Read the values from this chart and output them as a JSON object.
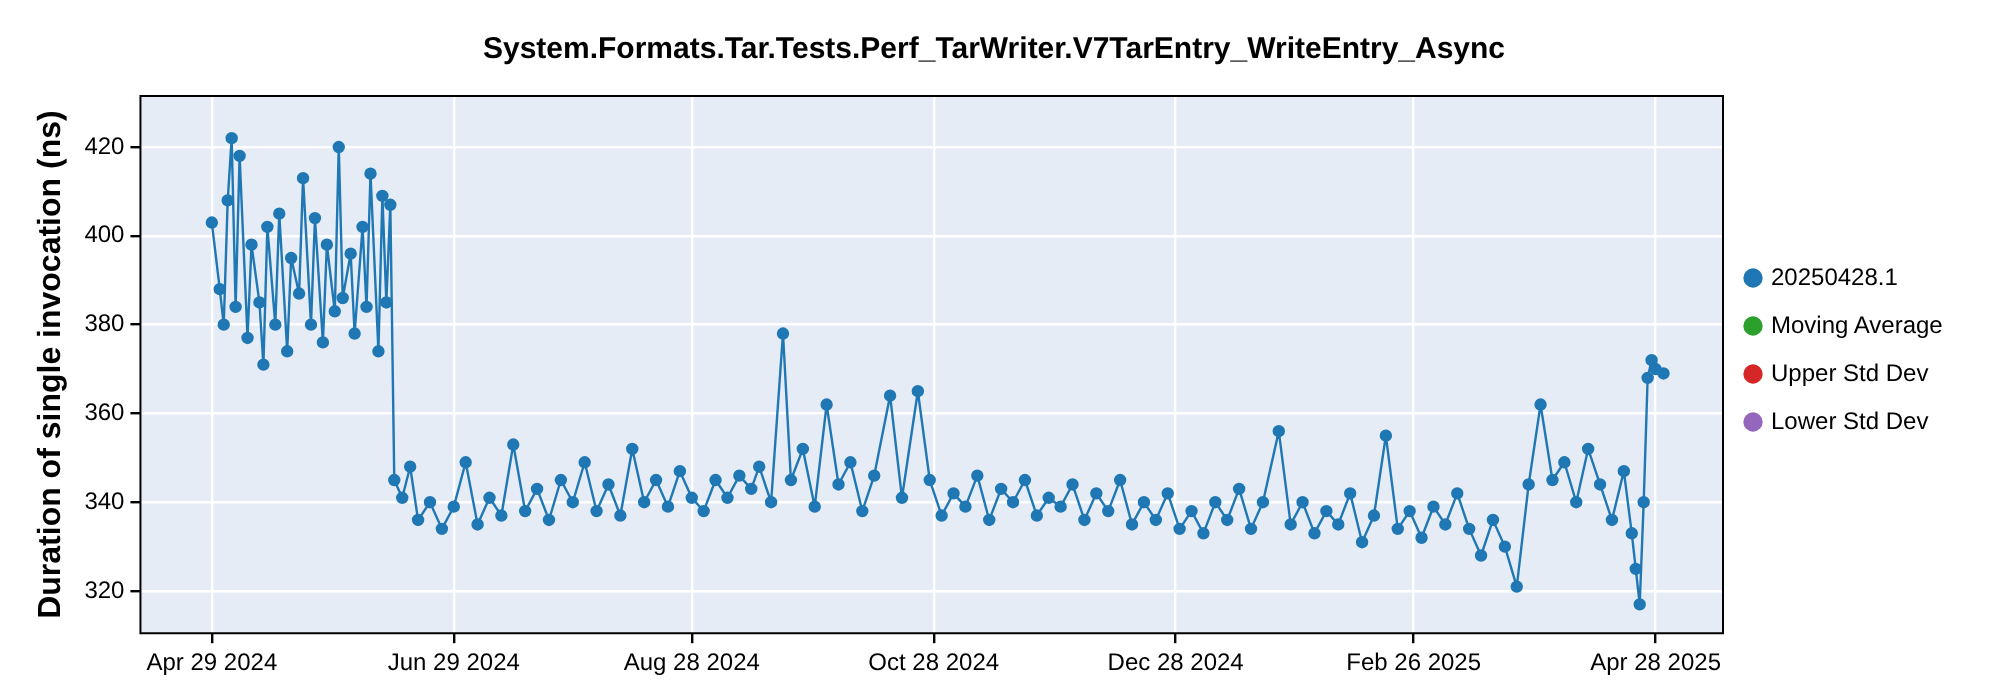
{
  "chart_data": {
    "type": "line",
    "title": "System.Formats.Tar.Tests.Perf_TarWriter.V7TarEntry_WriteEntry_Async",
    "ylabel": "Duration of single invocation (ns)",
    "x": [
      "2024-04-29",
      "2024-05-01",
      "2024-05-02",
      "2024-05-03",
      "2024-05-04",
      "2024-05-05",
      "2024-05-06",
      "2024-05-08",
      "2024-05-09",
      "2024-05-11",
      "2024-05-12",
      "2024-05-13",
      "2024-05-15",
      "2024-05-16",
      "2024-05-18",
      "2024-05-19",
      "2024-05-21",
      "2024-05-22",
      "2024-05-24",
      "2024-05-25",
      "2024-05-27",
      "2024-05-28",
      "2024-05-30",
      "2024-05-31",
      "2024-06-01",
      "2024-06-03",
      "2024-06-04",
      "2024-06-06",
      "2024-06-07",
      "2024-06-08",
      "2024-06-10",
      "2024-06-11",
      "2024-06-12",
      "2024-06-13",
      "2024-06-14",
      "2024-06-16",
      "2024-06-18",
      "2024-06-20",
      "2024-06-23",
      "2024-06-26",
      "2024-06-29",
      "2024-07-02",
      "2024-07-05",
      "2024-07-08",
      "2024-07-11",
      "2024-07-14",
      "2024-07-17",
      "2024-07-20",
      "2024-07-23",
      "2024-07-26",
      "2024-07-29",
      "2024-08-01",
      "2024-08-04",
      "2024-08-07",
      "2024-08-10",
      "2024-08-13",
      "2024-08-16",
      "2024-08-19",
      "2024-08-22",
      "2024-08-25",
      "2024-08-28",
      "2024-08-31",
      "2024-09-03",
      "2024-09-06",
      "2024-09-09",
      "2024-09-12",
      "2024-09-14",
      "2024-09-17",
      "2024-09-20",
      "2024-09-22",
      "2024-09-25",
      "2024-09-28",
      "2024-10-01",
      "2024-10-04",
      "2024-10-07",
      "2024-10-10",
      "2024-10-13",
      "2024-10-17",
      "2024-10-20",
      "2024-10-24",
      "2024-10-27",
      "2024-10-30",
      "2024-11-02",
      "2024-11-05",
      "2024-11-08",
      "2024-11-11",
      "2024-11-14",
      "2024-11-17",
      "2024-11-20",
      "2024-11-23",
      "2024-11-26",
      "2024-11-29",
      "2024-12-02",
      "2024-12-05",
      "2024-12-08",
      "2024-12-11",
      "2024-12-14",
      "2024-12-17",
      "2024-12-20",
      "2024-12-23",
      "2024-12-26",
      "2024-12-29",
      "2025-01-01",
      "2025-01-04",
      "2025-01-07",
      "2025-01-10",
      "2025-01-13",
      "2025-01-16",
      "2025-01-19",
      "2025-01-23",
      "2025-01-26",
      "2025-01-29",
      "2025-02-01",
      "2025-02-04",
      "2025-02-07",
      "2025-02-10",
      "2025-02-13",
      "2025-02-16",
      "2025-02-19",
      "2025-02-22",
      "2025-02-25",
      "2025-02-28",
      "2025-03-03",
      "2025-03-06",
      "2025-03-09",
      "2025-03-12",
      "2025-03-15",
      "2025-03-18",
      "2025-03-21",
      "2025-03-24",
      "2025-03-27",
      "2025-03-30",
      "2025-04-02",
      "2025-04-05",
      "2025-04-08",
      "2025-04-11",
      "2025-04-14",
      "2025-04-17",
      "2025-04-20",
      "2025-04-22",
      "2025-04-23",
      "2025-04-24",
      "2025-04-25",
      "2025-04-26",
      "2025-04-27",
      "2025-04-28",
      "2025-04-30"
    ],
    "series": [
      {
        "name": "20250428.1",
        "color": "#1f77b4",
        "values": [
          403,
          388,
          380,
          408,
          422,
          384,
          418,
          377,
          398,
          385,
          371,
          402,
          380,
          405,
          374,
          395,
          387,
          413,
          380,
          404,
          376,
          398,
          383,
          420,
          386,
          396,
          378,
          402,
          384,
          414,
          374,
          409,
          385,
          407,
          345,
          341,
          348,
          336,
          340,
          334,
          339,
          349,
          335,
          341,
          337,
          353,
          338,
          343,
          336,
          345,
          340,
          349,
          338,
          344,
          337,
          352,
          340,
          345,
          339,
          347,
          341,
          338,
          345,
          341,
          346,
          343,
          348,
          340,
          378,
          345,
          352,
          339,
          362,
          344,
          349,
          338,
          346,
          364,
          341,
          365,
          345,
          337,
          342,
          339,
          346,
          336,
          343,
          340,
          345,
          337,
          341,
          339,
          344,
          336,
          342,
          338,
          345,
          335,
          340,
          336,
          342,
          334,
          338,
          333,
          340,
          336,
          343,
          334,
          340,
          356,
          335,
          340,
          333,
          338,
          335,
          342,
          331,
          337,
          355,
          334,
          338,
          332,
          339,
          335,
          342,
          334,
          328,
          336,
          330,
          321,
          344,
          362,
          345,
          349,
          340,
          352,
          344,
          336,
          347,
          333,
          325,
          317,
          340,
          368,
          372,
          370,
          369
        ]
      },
      {
        "name": "Moving Average",
        "color": "#2ca02c",
        "values": [
          null,
          null,
          null,
          null,
          null,
          null,
          null,
          null,
          null,
          null,
          null,
          null,
          null,
          null,
          null,
          null,
          null,
          null,
          null,
          null,
          null,
          null,
          null,
          null,
          null,
          null,
          null,
          null,
          null,
          null,
          null,
          null,
          null,
          null,
          null,
          null,
          null,
          null,
          null,
          null,
          null,
          null,
          null,
          null,
          null,
          null,
          null,
          null,
          null,
          null,
          null,
          null,
          null,
          null,
          null,
          null,
          null,
          null,
          null,
          null,
          null,
          null,
          null,
          null,
          null,
          null,
          null,
          null,
          null,
          null,
          null,
          null,
          null,
          null,
          null,
          null,
          null,
          null,
          null,
          null,
          null,
          null,
          null,
          null,
          null,
          null,
          null,
          null,
          null,
          null,
          null,
          null,
          null,
          null,
          null,
          null,
          null,
          null,
          null,
          null,
          null,
          null,
          null,
          null,
          null,
          null,
          null,
          null,
          null,
          null,
          null,
          null,
          null,
          null,
          null,
          null,
          null,
          null,
          null,
          null,
          null,
          null,
          null,
          null,
          null,
          null,
          null,
          null,
          null,
          null,
          null,
          null,
          null,
          null,
          null,
          null,
          null,
          null,
          null,
          null,
          null,
          null,
          null,
          null,
          null,
          null,
          null
        ]
      },
      {
        "name": "Upper Std Dev",
        "color": "#d62728",
        "values": [
          null,
          null,
          null,
          null,
          null,
          null,
          null,
          null,
          null,
          null,
          null,
          null,
          null,
          null,
          null,
          null,
          null,
          null,
          null,
          null,
          null,
          null,
          null,
          null,
          null,
          null,
          null,
          null,
          null,
          null,
          null,
          null,
          null,
          null,
          null,
          null,
          null,
          null,
          null,
          null,
          null,
          null,
          null,
          null,
          null,
          null,
          null,
          null,
          null,
          null,
          null,
          null,
          null,
          null,
          null,
          null,
          null,
          null,
          null,
          null,
          null,
          null,
          null,
          null,
          null,
          null,
          null,
          null,
          null,
          null,
          null,
          null,
          null,
          null,
          null,
          null,
          null,
          null,
          null,
          null,
          null,
          null,
          null,
          null,
          null,
          null,
          null,
          null,
          null,
          null,
          null,
          null,
          null,
          null,
          null,
          null,
          null,
          null,
          null,
          null,
          null,
          null,
          null,
          null,
          null,
          null,
          null,
          null,
          null,
          null,
          null,
          null,
          null,
          null,
          null,
          null,
          null,
          null,
          null,
          null,
          null,
          null,
          null,
          null,
          null,
          null,
          null,
          null,
          null,
          null,
          null,
          null,
          null,
          null,
          null,
          null,
          null,
          null,
          null,
          null,
          null,
          null,
          null,
          null,
          null,
          null,
          null
        ]
      },
      {
        "name": "Lower Std Dev",
        "color": "#9467bd",
        "values": [
          null,
          null,
          null,
          null,
          null,
          null,
          null,
          null,
          null,
          null,
          null,
          null,
          null,
          null,
          null,
          null,
          null,
          null,
          null,
          null,
          null,
          null,
          null,
          null,
          null,
          null,
          null,
          null,
          null,
          null,
          null,
          null,
          null,
          null,
          null,
          null,
          null,
          null,
          null,
          null,
          null,
          null,
          null,
          null,
          null,
          null,
          null,
          null,
          null,
          null,
          null,
          null,
          null,
          null,
          null,
          null,
          null,
          null,
          null,
          null,
          null,
          null,
          null,
          null,
          null,
          null,
          null,
          null,
          null,
          null,
          null,
          null,
          null,
          null,
          null,
          null,
          null,
          null,
          null,
          null,
          null,
          null,
          null,
          null,
          null,
          null,
          null,
          null,
          null,
          null,
          null,
          null,
          null,
          null,
          null,
          null,
          null,
          null,
          null,
          null,
          null,
          null,
          null,
          null,
          null,
          null,
          null,
          null,
          null,
          null,
          null,
          null,
          null,
          null,
          null,
          null,
          null,
          null,
          null,
          null,
          null,
          null,
          null,
          null,
          null,
          null,
          null,
          null,
          null,
          null,
          null,
          null,
          null,
          null,
          null,
          null,
          null,
          null,
          null,
          null,
          null,
          null,
          null,
          null,
          null,
          null,
          null
        ]
      }
    ],
    "xlim": [
      "2024-04-11",
      "2025-05-15"
    ],
    "xticks": [
      {
        "value": "2024-04-29",
        "label": "Apr 29 2024"
      },
      {
        "value": "2024-06-29",
        "label": "Jun 29 2024"
      },
      {
        "value": "2024-08-28",
        "label": "Aug 28 2024"
      },
      {
        "value": "2024-10-28",
        "label": "Oct 28 2024"
      },
      {
        "value": "2024-12-28",
        "label": "Dec 28 2024"
      },
      {
        "value": "2025-02-26",
        "label": "Feb 26 2025"
      },
      {
        "value": "2025-04-28",
        "label": "Apr 28 2025"
      }
    ],
    "ylim": [
      310.5,
      431.5
    ],
    "yticks": [
      320,
      340,
      360,
      380,
      400,
      420
    ],
    "grid": true,
    "legend": "right",
    "marker": "circle",
    "line_style": "solid"
  }
}
